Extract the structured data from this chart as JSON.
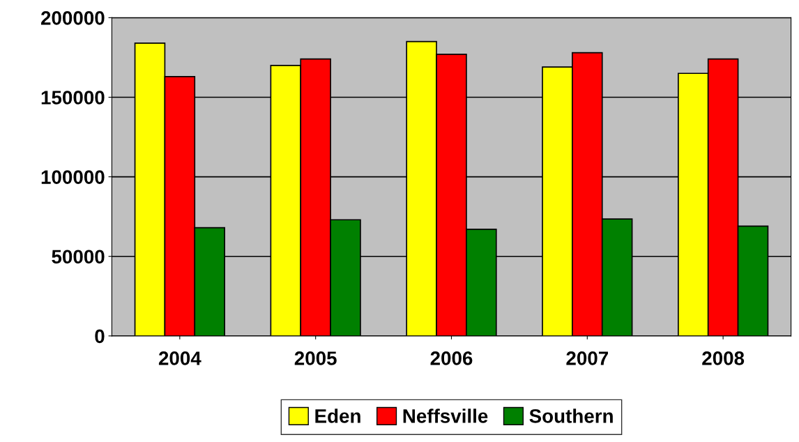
{
  "chart_data": {
    "type": "bar",
    "categories": [
      "2004",
      "2005",
      "2006",
      "2007",
      "2008"
    ],
    "series": [
      {
        "name": "Eden",
        "color": "#ffff00",
        "values": [
          184000,
          170000,
          185000,
          169000,
          165000
        ]
      },
      {
        "name": "Neffsville",
        "color": "#ff0000",
        "values": [
          163000,
          174000,
          177000,
          178000,
          174000
        ]
      },
      {
        "name": "Southern",
        "color": "#008000",
        "values": [
          68000,
          73000,
          67000,
          73500,
          69000
        ]
      }
    ],
    "ylim": [
      0,
      200000
    ],
    "yticks": [
      0,
      50000,
      100000,
      150000,
      200000
    ],
    "grid": "y",
    "legend": "bottom"
  }
}
